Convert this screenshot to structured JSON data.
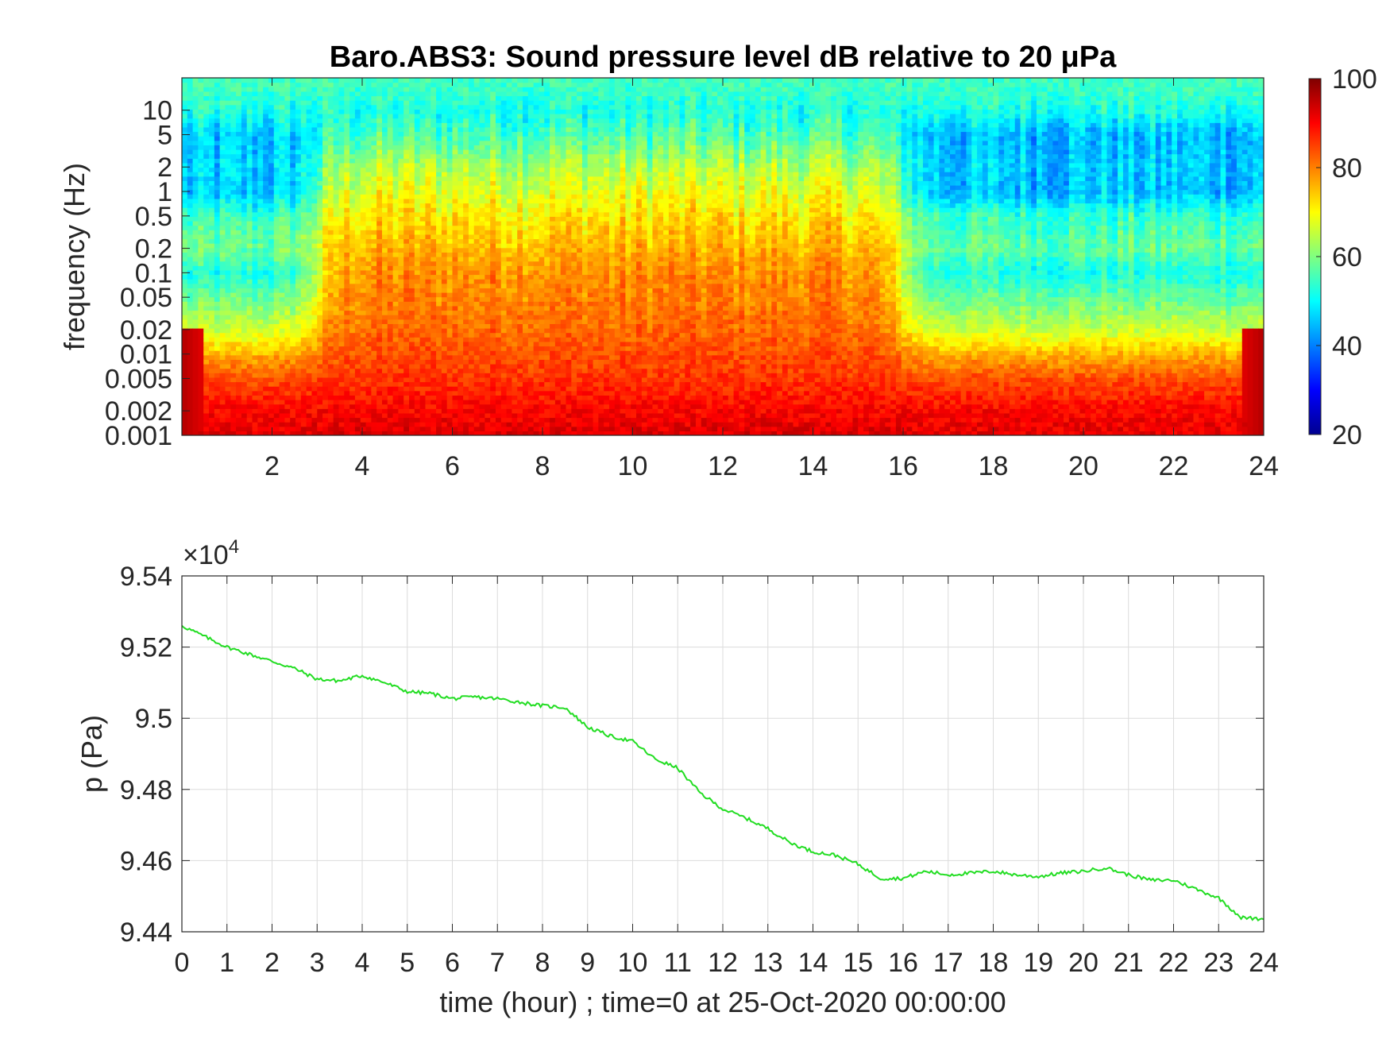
{
  "chart_data": [
    {
      "type": "heatmap",
      "title": "Baro.ABS3: Sound pressure level dB relative to 20 μPa",
      "xlabel": "",
      "ylabel": "frequency (Hz)",
      "x_ticks": [
        "2",
        "4",
        "6",
        "8",
        "10",
        "12",
        "14",
        "16",
        "18",
        "20",
        "22",
        "24"
      ],
      "x_tick_values": [
        2,
        4,
        6,
        8,
        10,
        12,
        14,
        16,
        18,
        20,
        22,
        24
      ],
      "xlim": [
        0,
        24
      ],
      "y_scale": "log",
      "y_ticks": [
        "0.001",
        "0.002",
        "0.005",
        "0.01",
        "0.02",
        "0.05",
        "0.1",
        "0.2",
        "0.5",
        "1",
        "2",
        "5",
        "10"
      ],
      "y_tick_values": [
        0.001,
        0.002,
        0.005,
        0.01,
        0.02,
        0.05,
        0.1,
        0.2,
        0.5,
        1,
        2,
        5,
        10
      ],
      "ylim": [
        0.001,
        25
      ],
      "colorbar": {
        "colormap": "jet",
        "clim": [
          20,
          100
        ],
        "ticks": [
          "20",
          "40",
          "60",
          "80",
          "100"
        ],
        "tick_values": [
          20,
          40,
          60,
          80,
          100
        ]
      },
      "level_profile_db": {
        "description_axis": "approximate dB level by frequency band",
        "frequency_hz": [
          0.001,
          0.002,
          0.005,
          0.01,
          0.02,
          0.05,
          0.1,
          0.2,
          0.5,
          1,
          2,
          5,
          10,
          20
        ],
        "quiet_period_db": [
          92,
          90,
          84,
          76,
          66,
          58,
          52,
          58,
          54,
          45,
          46,
          45,
          52,
          55
        ],
        "active_period_db": [
          93,
          90,
          86,
          84,
          82,
          80,
          79,
          76,
          72,
          68,
          64,
          56,
          52,
          55
        ]
      },
      "active_periods_hour": [
        [
          3,
          16
        ]
      ]
    },
    {
      "type": "line",
      "title": "",
      "xlabel": "time (hour) ; time=0 at 25-Oct-2020 00:00:00",
      "ylabel": "p (Pa)",
      "y_multiplier": "×10^4",
      "x_ticks": [
        "0",
        "1",
        "2",
        "3",
        "4",
        "5",
        "6",
        "7",
        "8",
        "9",
        "10",
        "11",
        "12",
        "13",
        "14",
        "15",
        "16",
        "17",
        "18",
        "19",
        "20",
        "21",
        "22",
        "23",
        "24"
      ],
      "y_ticks": [
        "9.44",
        "9.46",
        "9.48",
        "9.5",
        "9.52",
        "9.54"
      ],
      "y_tick_values": [
        94400,
        94600,
        94800,
        95000,
        95200,
        95400
      ],
      "xlim": [
        0,
        24
      ],
      "ylim": [
        94400,
        95400
      ],
      "grid": true,
      "line_color": "#22dd22",
      "series": [
        {
          "x": [
            0,
            0.5,
            1,
            1.5,
            2,
            2.5,
            3,
            3.5,
            4,
            4.5,
            5,
            5.5,
            6,
            6.5,
            7,
            7.5,
            8,
            8.5,
            9,
            9.5,
            10,
            10.5,
            11,
            11.5,
            12,
            12.5,
            13,
            13.5,
            14,
            14.5,
            15,
            15.5,
            16,
            16.5,
            17,
            17.5,
            18,
            18.5,
            19,
            19.5,
            20,
            20.5,
            21,
            21.5,
            22,
            22.5,
            23,
            23.5,
            24
          ],
          "y": [
            95260,
            95230,
            95200,
            95180,
            95160,
            95140,
            95110,
            95105,
            95120,
            95100,
            95075,
            95070,
            95055,
            95060,
            95055,
            95045,
            95035,
            95030,
            94975,
            94950,
            94935,
            94885,
            94860,
            94790,
            94745,
            94720,
            94690,
            94650,
            94625,
            94615,
            94590,
            94550,
            94550,
            94570,
            94560,
            94565,
            94570,
            94560,
            94555,
            94565,
            94570,
            94580,
            94560,
            94545,
            94545,
            94520,
            94495,
            94440,
            94435
          ]
        }
      ]
    }
  ]
}
